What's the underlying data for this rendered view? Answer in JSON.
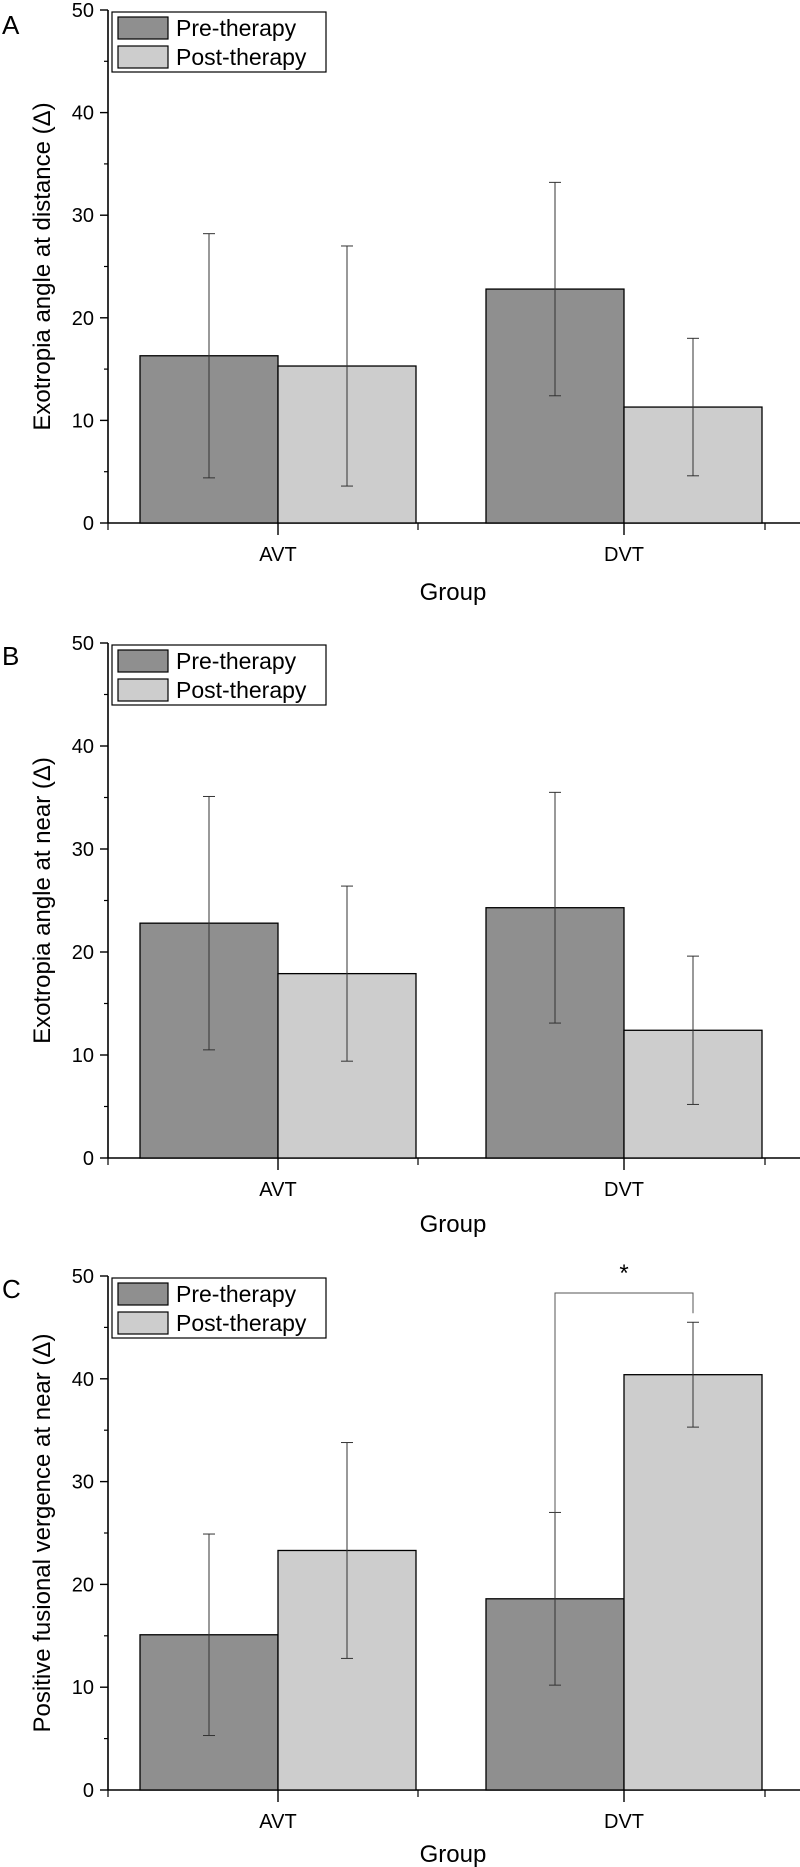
{
  "chart_data": [
    {
      "type": "bar",
      "panel": "A",
      "title": "",
      "xlabel": "Group",
      "ylabel": "Exotropia angle at distance (Δ)",
      "categories": [
        "AVT",
        "DVT"
      ],
      "ylim": [
        0,
        50
      ],
      "yticks": [
        "0",
        "10",
        "20",
        "30",
        "40",
        "50"
      ],
      "legend_position": "top-left",
      "series": [
        {
          "name": "Pre-therapy",
          "color": "#8f8f8f",
          "values": [
            16.3,
            22.8
          ],
          "errors": [
            11.9,
            10.4
          ]
        },
        {
          "name": "Post-therapy",
          "color": "#cdcdcd",
          "values": [
            15.3,
            11.3
          ],
          "errors": [
            11.7,
            6.7
          ]
        }
      ]
    },
    {
      "type": "bar",
      "panel": "B",
      "title": "",
      "xlabel": "Group",
      "ylabel": "Exotropia angle at near (Δ)",
      "categories": [
        "AVT",
        "DVT"
      ],
      "ylim": [
        0,
        50
      ],
      "yticks": [
        "0",
        "10",
        "20",
        "30",
        "40",
        "50"
      ],
      "legend_position": "top-left",
      "series": [
        {
          "name": "Pre-therapy",
          "color": "#8f8f8f",
          "values": [
            22.8,
            24.3
          ],
          "errors": [
            12.3,
            11.2
          ]
        },
        {
          "name": "Post-therapy",
          "color": "#cdcdcd",
          "values": [
            17.9,
            12.4
          ],
          "errors": [
            8.5,
            7.2
          ]
        }
      ]
    },
    {
      "type": "bar",
      "panel": "C",
      "title": "",
      "xlabel": "Group",
      "ylabel": "Positive fusional vergence at near (Δ)",
      "categories": [
        "AVT",
        "DVT"
      ],
      "ylim": [
        0,
        50
      ],
      "yticks": [
        "0",
        "10",
        "20",
        "30",
        "40",
        "50"
      ],
      "legend_position": "top-left",
      "significance": {
        "label": "*",
        "category": "DVT",
        "between": [
          "Pre-therapy",
          "Post-therapy"
        ]
      },
      "series": [
        {
          "name": "Pre-therapy",
          "color": "#8f8f8f",
          "values": [
            15.1,
            18.6
          ],
          "errors": [
            9.8,
            8.4
          ]
        },
        {
          "name": "Post-therapy",
          "color": "#cdcdcd",
          "values": [
            23.3,
            40.4
          ],
          "errors": [
            10.5,
            5.1
          ]
        }
      ]
    }
  ]
}
